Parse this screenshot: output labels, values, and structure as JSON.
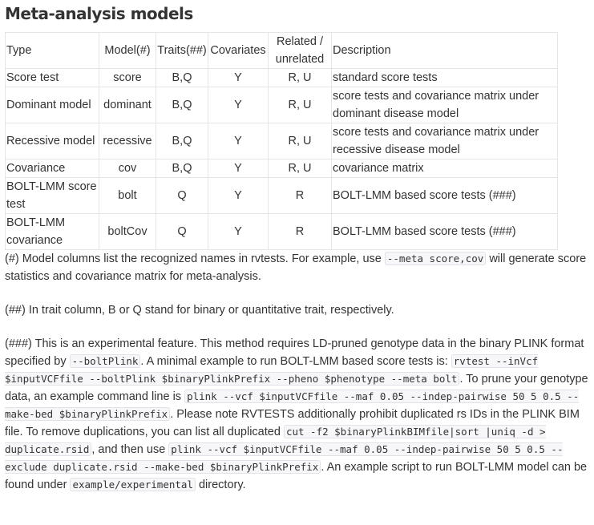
{
  "heading": "Meta-analysis models",
  "table": {
    "headers": [
      "Type",
      "Model(#)",
      "Traits(##)",
      "Covariates",
      "Related / unrelated",
      "Description"
    ],
    "rows": [
      [
        "Score test",
        "score",
        "B,Q",
        "Y",
        "R, U",
        "standard score tests"
      ],
      [
        "Dominant model",
        "dominant",
        "B,Q",
        "Y",
        "R, U",
        "score tests and covariance matrix under dominant disease model"
      ],
      [
        "Recessive model",
        "recessive",
        "B,Q",
        "Y",
        "R, U",
        "score tests and covariance matrix under recessive disease model"
      ],
      [
        "Covariance",
        "cov",
        "B,Q",
        "Y",
        "R, U",
        "covariance matrix"
      ],
      [
        "BOLT-LMM score test",
        "bolt",
        "Q",
        "Y",
        "R",
        "BOLT-LMM based score tests (###)"
      ],
      [
        "BOLT-LMM covariance",
        "boltCov",
        "Q",
        "Y",
        "R",
        "BOLT-LMM based score tests (###)"
      ]
    ]
  },
  "note1": {
    "t1": "(#) Model columns list the recognized names in rvtests. For example, use ",
    "c1": "--meta score,cov",
    "t2": " will generate score statistics and covariance matrix for meta-analysis."
  },
  "note2": "(##) In trait column, B or Q stand for binary or quantitative trait, respectively.",
  "note3": {
    "t1": "(###) This is an experimental feature. This method requires LD-pruned genotype data in the binary PLINK format specified by ",
    "c1": "--boltPlink",
    "t2": ". A minimal example to run BOLT-LMM based score tests is: ",
    "c2": "rvtest --inVcf $inputVCFfile --boltPlink $binaryPlinkPrefix --pheno $phenotype --meta bolt",
    "t3": ". To prune your genotype data, an example command line is ",
    "c3": "plink --vcf $inputVCFfile --maf 0.05 --indep-pairwise 50 5 0.5 --make-bed $binaryPlinkPrefix",
    "t4": ". Please note RVTESTS additionally prohibit duplicated rs IDs in the PLINK BIM file. To remove duplications, you can list all duplicated ",
    "c4": "cut -f2 $binaryPlinkBIMfile|sort |uniq -d > duplicate.rsid",
    "t5": ", and then use ",
    "c5": "plink --vcf $inputVCFfile --maf 0.05 --indep-pairwise 50 5 0.5 --exclude duplicate.rsid --make-bed $binaryPlinkPrefix",
    "t6": ". An example script to run BOLT-LMM model can be found under ",
    "c6": "example/experimental",
    "t7": " directory."
  }
}
